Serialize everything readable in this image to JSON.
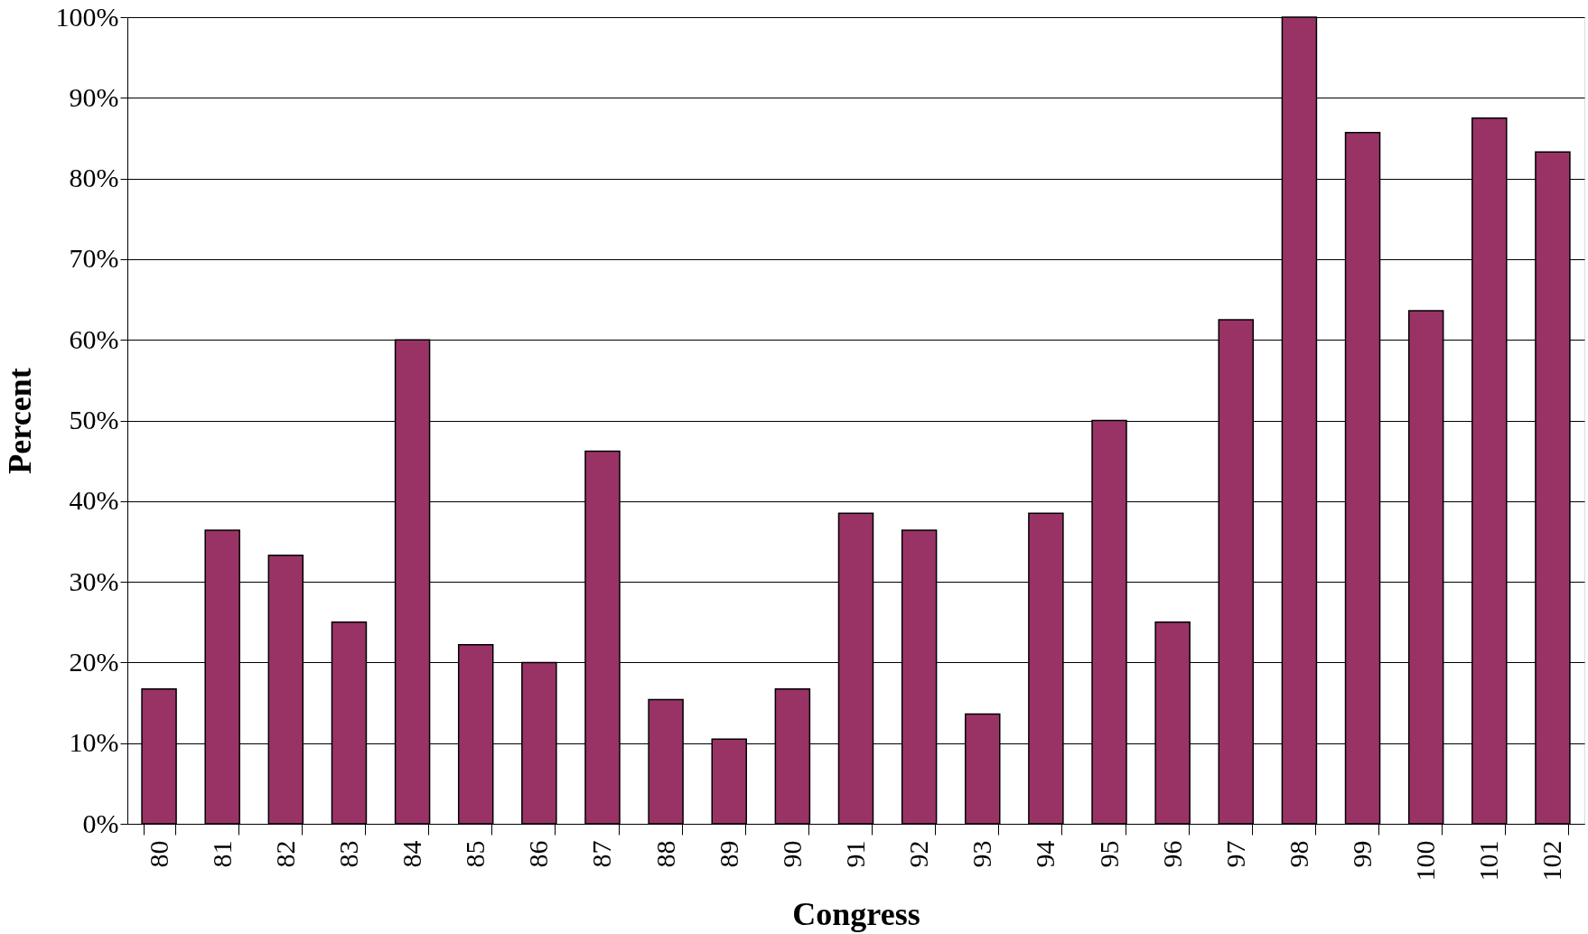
{
  "chart_data": {
    "type": "bar",
    "xlabel": "Congress",
    "ylabel": "Percent",
    "categories": [
      "80",
      "81",
      "82",
      "83",
      "84",
      "85",
      "86",
      "87",
      "88",
      "89",
      "90",
      "91",
      "92",
      "93",
      "94",
      "95",
      "96",
      "97",
      "98",
      "99",
      "100",
      "101",
      "102"
    ],
    "values": [
      16.7,
      36.4,
      33.3,
      25,
      60,
      22.2,
      20,
      46.2,
      15.4,
      10.5,
      16.7,
      38.5,
      36.4,
      13.6,
      38.5,
      50,
      25,
      62.5,
      100,
      85.7,
      63.6,
      87.5,
      83.3
    ],
    "color": "#993366",
    "ylim": [
      0,
      100
    ],
    "yticks": [
      {
        "value": 0,
        "label": "0%"
      },
      {
        "value": 10,
        "label": "10%"
      },
      {
        "value": 20,
        "label": "20%"
      },
      {
        "value": 30,
        "label": "30%"
      },
      {
        "value": 40,
        "label": "40%"
      },
      {
        "value": 50,
        "label": "50%"
      },
      {
        "value": 60,
        "label": "60%"
      },
      {
        "value": 70,
        "label": "70%"
      },
      {
        "value": 80,
        "label": "80%"
      },
      {
        "value": 90,
        "label": "90%"
      },
      {
        "value": 100,
        "label": "100%"
      }
    ],
    "grid": "y"
  }
}
